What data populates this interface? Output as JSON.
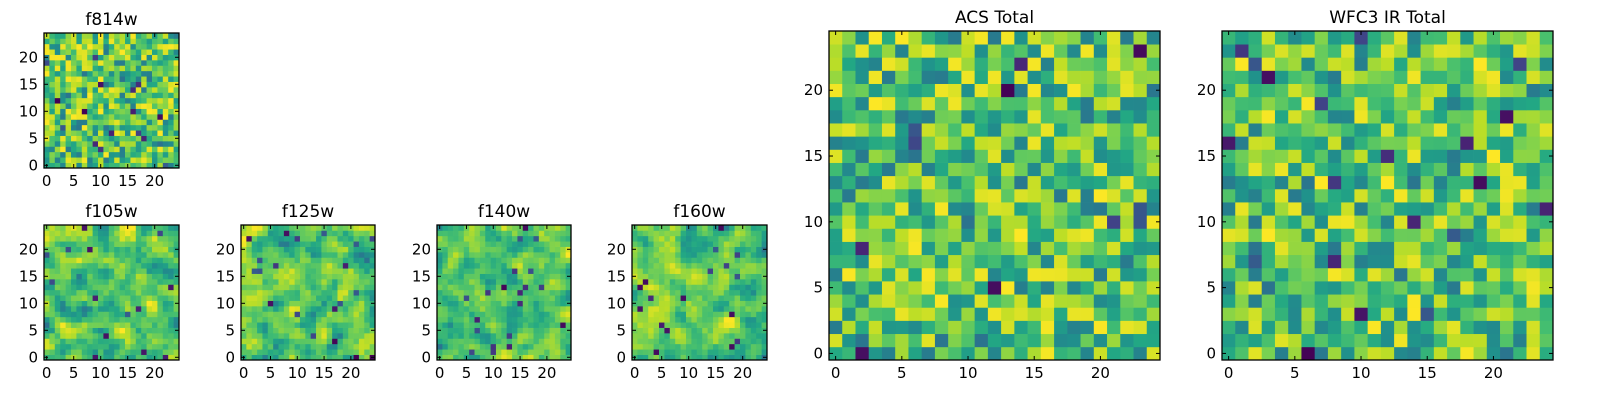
{
  "chart_data": [
    {
      "type": "heatmap",
      "title": "f814w",
      "colormap": "viridis",
      "grid_size": [
        25,
        25
      ],
      "xlim": [
        0,
        24
      ],
      "ylim": [
        0,
        24
      ],
      "xticks": [
        "0",
        "5",
        "10",
        "15",
        "20"
      ],
      "yticks": [
        "0",
        "5",
        "10",
        "15",
        "20"
      ],
      "seed": 11,
      "smooth": 0,
      "extreme_rate": 0.03
    },
    {
      "type": "heatmap",
      "title": "f105w",
      "colormap": "viridis",
      "grid_size": [
        25,
        25
      ],
      "xlim": [
        0,
        24
      ],
      "ylim": [
        0,
        24
      ],
      "xticks": [
        "0",
        "5",
        "10",
        "15",
        "20"
      ],
      "yticks": [
        "0",
        "5",
        "10",
        "15",
        "20"
      ],
      "seed": 23,
      "smooth": 1,
      "extreme_rate": 0.025
    },
    {
      "type": "heatmap",
      "title": "f125w",
      "colormap": "viridis",
      "grid_size": [
        25,
        25
      ],
      "xlim": [
        0,
        24
      ],
      "ylim": [
        0,
        24
      ],
      "xticks": [
        "0",
        "5",
        "10",
        "15",
        "20"
      ],
      "yticks": [
        "0",
        "5",
        "10",
        "15",
        "20"
      ],
      "seed": 37,
      "smooth": 1,
      "extreme_rate": 0.02
    },
    {
      "type": "heatmap",
      "title": "f140w",
      "colormap": "viridis",
      "grid_size": [
        25,
        25
      ],
      "xlim": [
        0,
        24
      ],
      "ylim": [
        0,
        24
      ],
      "xticks": [
        "0",
        "5",
        "10",
        "15",
        "20"
      ],
      "yticks": [
        "0",
        "5",
        "10",
        "15",
        "20"
      ],
      "seed": 41,
      "smooth": 1,
      "extreme_rate": 0.03
    },
    {
      "type": "heatmap",
      "title": "f160w",
      "colormap": "viridis",
      "grid_size": [
        25,
        25
      ],
      "xlim": [
        0,
        24
      ],
      "ylim": [
        0,
        24
      ],
      "xticks": [
        "0",
        "5",
        "10",
        "15",
        "20"
      ],
      "yticks": [
        "0",
        "5",
        "10",
        "15",
        "20"
      ],
      "seed": 53,
      "smooth": 1,
      "extreme_rate": 0.03
    },
    {
      "type": "heatmap",
      "title": "ACS Total",
      "colormap": "viridis",
      "grid_size": [
        25,
        25
      ],
      "xlim": [
        0,
        24
      ],
      "ylim": [
        0,
        24
      ],
      "xticks": [
        "0",
        "5",
        "10",
        "15",
        "20"
      ],
      "yticks": [
        "0",
        "5",
        "10",
        "15",
        "20"
      ],
      "seed": 67,
      "smooth": 0,
      "extreme_rate": 0.02
    },
    {
      "type": "heatmap",
      "title": "WFC3 IR Total",
      "colormap": "viridis",
      "grid_size": [
        25,
        25
      ],
      "xlim": [
        0,
        24
      ],
      "ylim": [
        0,
        24
      ],
      "xticks": [
        "0",
        "5",
        "10",
        "15",
        "20"
      ],
      "yticks": [
        "0",
        "5",
        "10",
        "15",
        "20"
      ],
      "seed": 79,
      "smooth": 0,
      "extreme_rate": 0.025
    }
  ]
}
